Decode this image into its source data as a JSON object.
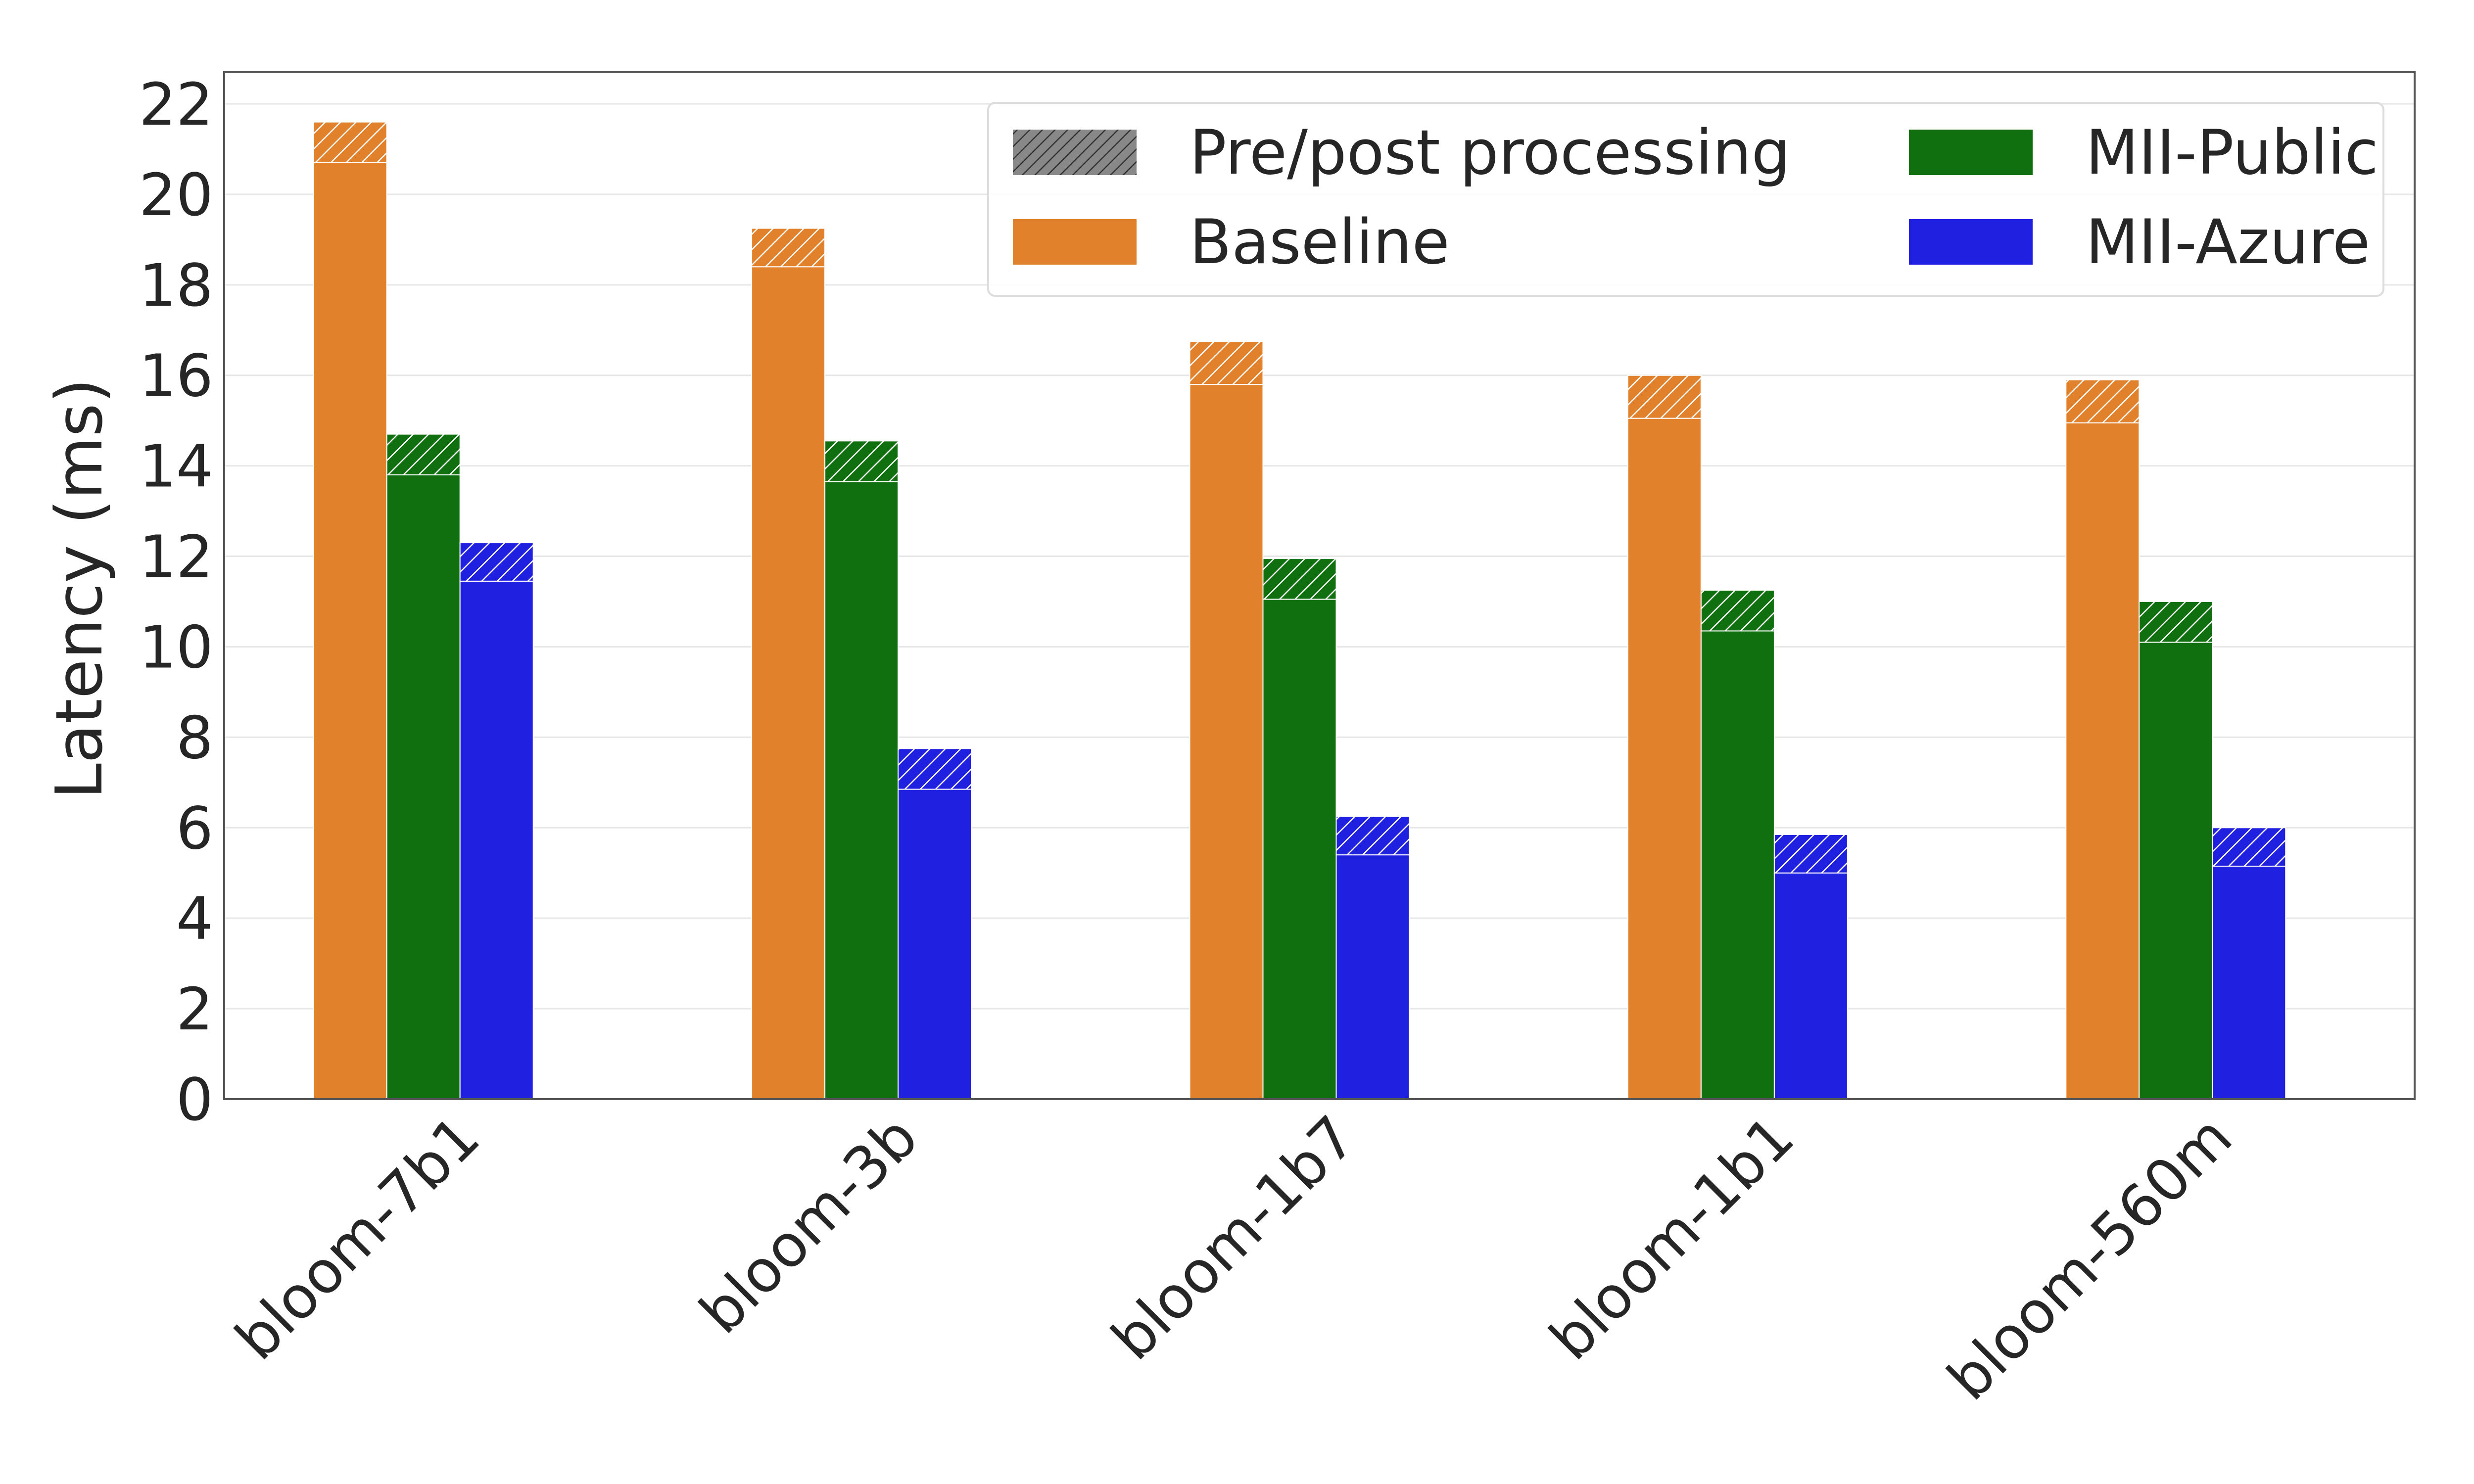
{
  "chart_data": {
    "type": "bar",
    "stacked_overlay": "hatched segment on top of each bar = pre/post processing",
    "title": "",
    "xlabel": "",
    "ylabel": "Latency (ms)",
    "ylim": [
      0,
      22.7
    ],
    "yticks": [
      0,
      2,
      4,
      6,
      8,
      10,
      12,
      14,
      16,
      18,
      20,
      22
    ],
    "grid": true,
    "legend_position": "top-right",
    "categories": [
      "bloom-7b1",
      "bloom-3b",
      "bloom-1b7",
      "bloom-1b1",
      "bloom-560m"
    ],
    "series": [
      {
        "name": "Baseline",
        "color": "#e1812c",
        "values": [
          20.7,
          18.4,
          15.8,
          15.05,
          14.95
        ],
        "prepost": [
          0.9,
          0.85,
          0.95,
          0.95,
          0.95
        ]
      },
      {
        "name": "MII-Public",
        "color": "#107010",
        "values": [
          13.8,
          13.65,
          11.05,
          10.35,
          10.1
        ],
        "prepost": [
          0.9,
          0.9,
          0.9,
          0.9,
          0.9
        ]
      },
      {
        "name": "MII-Azure",
        "color": "#2020e0",
        "values": [
          11.45,
          6.85,
          5.4,
          5.0,
          5.15
        ],
        "prepost": [
          0.85,
          0.9,
          0.85,
          0.85,
          0.85
        ]
      }
    ],
    "legend": [
      {
        "label": "Pre/post processing",
        "swatch": "hatch",
        "color": "#888888"
      },
      {
        "label": "Baseline",
        "swatch": "solid",
        "color": "#e1812c"
      },
      {
        "label": "MII-Public",
        "swatch": "solid",
        "color": "#107010"
      },
      {
        "label": "MII-Azure",
        "swatch": "solid",
        "color": "#2020e0"
      }
    ]
  }
}
